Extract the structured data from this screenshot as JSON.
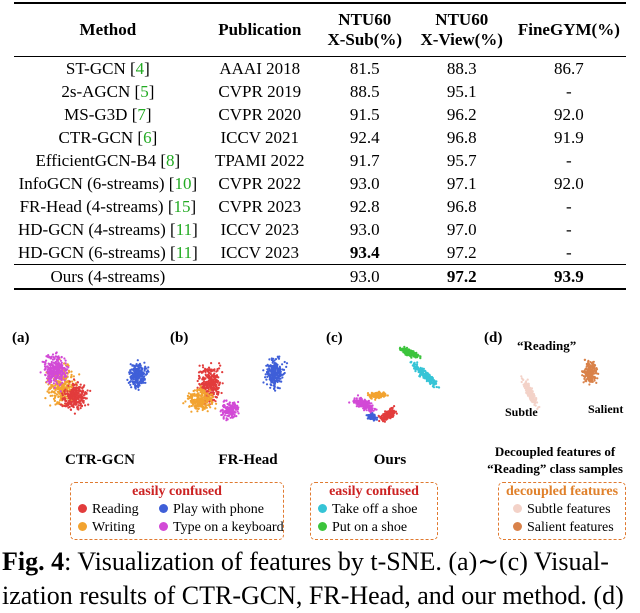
{
  "table": {
    "headers": [
      "Method",
      "Publication",
      "NTU60",
      "X-Sub(%)",
      "NTU60",
      "X-View(%)",
      "FineGYM(%)"
    ],
    "rows": [
      {
        "method": "ST-GCN",
        "ref": "4",
        "pub": "AAAI 2018",
        "xsub": "81.5",
        "xview": "88.3",
        "gym": "86.7"
      },
      {
        "method": "2s-AGCN",
        "ref": "5",
        "pub": "CVPR 2019",
        "xsub": "88.5",
        "xview": "95.1",
        "gym": "-"
      },
      {
        "method": "MS-G3D",
        "ref": "7",
        "pub": "CVPR 2020",
        "xsub": "91.5",
        "xview": "96.2",
        "gym": "92.0"
      },
      {
        "method": "CTR-GCN",
        "ref": "6",
        "pub": "ICCV 2021",
        "xsub": "92.4",
        "xview": "96.8",
        "gym": "91.9"
      },
      {
        "method": "EfficientGCN-B4",
        "ref": "8",
        "pub": "TPAMI 2022",
        "xsub": "91.7",
        "xview": "95.7",
        "gym": "-"
      },
      {
        "method": "InfoGCN (6-streams)",
        "ref": "10",
        "pub": "CVPR 2022",
        "xsub": "93.0",
        "xview": "97.1",
        "gym": "92.0"
      },
      {
        "method": "FR-Head (4-streams)",
        "ref": "15",
        "pub": "CVPR 2023",
        "xsub": "92.8",
        "xview": "96.8",
        "gym": "-"
      },
      {
        "method": "HD-GCN (4-streams)",
        "ref": "11",
        "pub": "ICCV 2023",
        "xsub": "93.0",
        "xview": "97.0",
        "gym": "-"
      },
      {
        "method": "HD-GCN (6-streams)",
        "ref": "11",
        "pub": "ICCV 2023",
        "xsub": "93.4",
        "xview": "97.2",
        "gym": "-"
      }
    ],
    "ours": {
      "method": "Ours (4-streams)",
      "xsub": "93.0",
      "xview": "97.2",
      "gym": "93.9"
    }
  },
  "figure": {
    "panels": {
      "a": "(a)",
      "b": "(b)",
      "c": "(c)",
      "d": "(d)"
    },
    "labels": {
      "a": "CTR-GCN",
      "b": "FR-Head",
      "c": "Ours"
    },
    "d_reading": "“Reading”",
    "d_subtle": "Subtle",
    "d_salient": "Salient",
    "d_caption_1": "Decoupled features of",
    "d_caption_2": "“Reading” class samples",
    "legend1": {
      "title": "easily confused",
      "items": [
        {
          "label": "Reading",
          "color": "#e23c3c"
        },
        {
          "label": "Play with phone",
          "color": "#3f5fd8"
        },
        {
          "label": "Writing",
          "color": "#f2a330"
        },
        {
          "label": "Type on a keyboard",
          "color": "#d24ad6"
        }
      ]
    },
    "legend2": {
      "title": "easily confused",
      "items": [
        {
          "label": "Take off a shoe",
          "color": "#36c4d6"
        },
        {
          "label": "Put on a shoe",
          "color": "#3cc43c"
        }
      ]
    },
    "legend3": {
      "title": "decoupled features",
      "items": [
        {
          "label": "Subtle features",
          "color": "#f3d2c8"
        },
        {
          "label": "Salient features",
          "color": "#d9824a"
        }
      ]
    }
  },
  "caption": {
    "fig": "Fig. 4",
    "line1": ":  Visualization of features by t-SNE. (a)∼(c) Visual-",
    "line2": "ization results of CTR-GCN, FR-Head, and our method. (d)"
  }
}
